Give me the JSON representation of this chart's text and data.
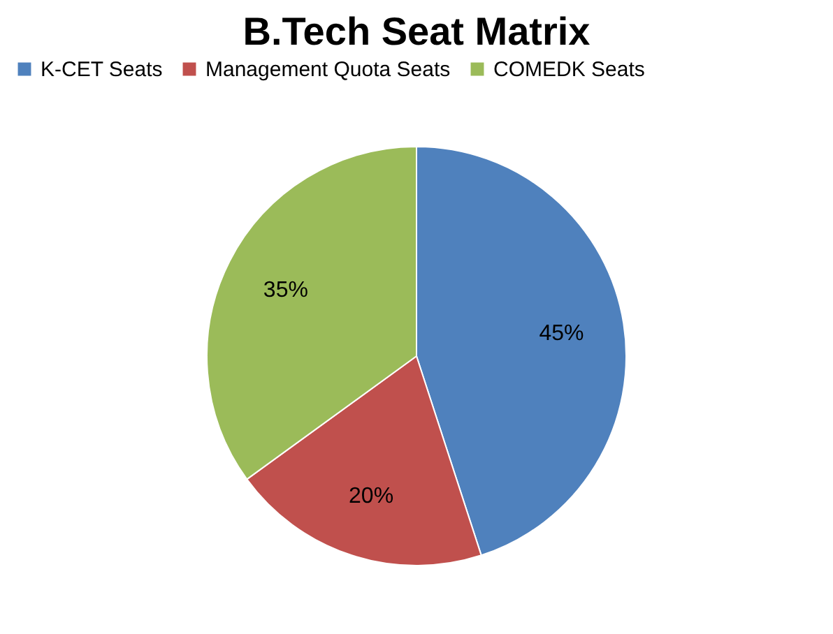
{
  "chart_data": {
    "type": "pie",
    "title": "B.Tech Seat Matrix",
    "categories": [
      "K-CET Seats",
      "Management Quota Seats",
      "COMEDK Seats"
    ],
    "values": [
      45,
      20,
      35
    ],
    "colors": [
      "#4f81bd",
      "#c0504d",
      "#9bbb59"
    ],
    "value_labels": [
      "45%",
      "20%",
      "35%"
    ],
    "legend": "top"
  }
}
